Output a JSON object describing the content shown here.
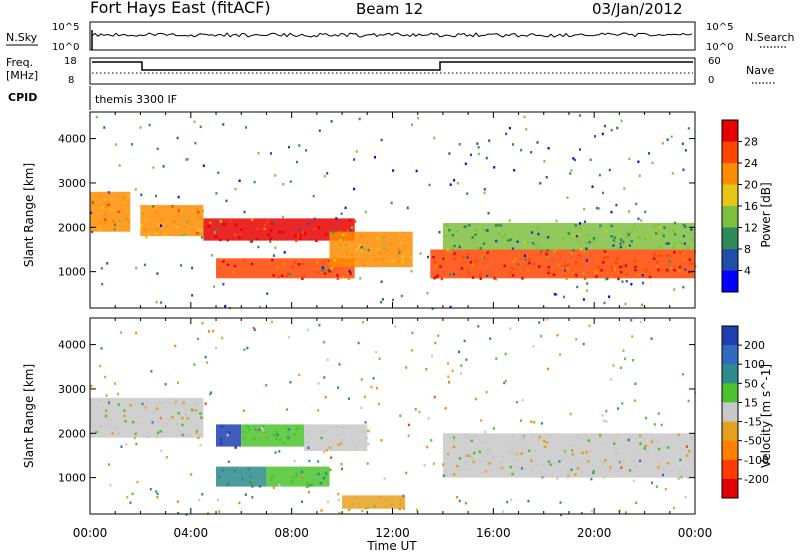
{
  "header": {
    "station": "Fort Hays East (fitACF)",
    "beam": "Beam 12",
    "date": "03/Jan/2012"
  },
  "noise_panel": {
    "left_label": "N.Sky",
    "right_label": "N.Search",
    "left_ticks": [
      "10^5",
      "10^0"
    ],
    "right_ticks": [
      "10^5",
      "10^0"
    ]
  },
  "freq_panel": {
    "left_label_1": "Freq.",
    "left_label_2": "[MHz]",
    "right_label": "Nave",
    "left_ticks": [
      "18",
      "8"
    ],
    "right_ticks": [
      "60",
      "0"
    ]
  },
  "cpid": {
    "label": "CPID",
    "value": "themis 3300 IF"
  },
  "colors": {
    "power_scale": [
      "#0000ff",
      "#1f4fa8",
      "#2e8b57",
      "#7fbf3f",
      "#e6c619",
      "#ff8c00",
      "#ff4500",
      "#e60000"
    ],
    "velocity_scale": [
      "#1f3fb0",
      "#2f6bbf",
      "#2e8b8b",
      "#4cc22c",
      "#c8c8c8",
      "#e6a020",
      "#ff8000",
      "#ff3b00",
      "#e00000"
    ]
  },
  "chart_data": [
    {
      "type": "heatmap",
      "title": "",
      "xlabel": "Time UT",
      "ylabel": "Slant Range [km]",
      "xlim": [
        "00:00",
        "24:00"
      ],
      "ylim": [
        180,
        4600
      ],
      "xticks": [
        "00:00",
        "04:00",
        "08:00",
        "12:00",
        "16:00",
        "20:00",
        "00:00"
      ],
      "yticks": [
        1000,
        2000,
        3000,
        4000
      ],
      "colorbar": {
        "label": "Power [dB]",
        "ticks": [
          4,
          8,
          12,
          16,
          20,
          24,
          28
        ],
        "range": [
          0,
          32
        ]
      },
      "bands": [
        {
          "t0": 0.0,
          "t1": 1.6,
          "r0": 1900,
          "r1": 2800,
          "level": 20
        },
        {
          "t0": 2.0,
          "t1": 4.5,
          "r0": 1800,
          "r1": 2500,
          "level": 20
        },
        {
          "t0": 4.5,
          "t1": 10.5,
          "r0": 1700,
          "r1": 2200,
          "level": 28
        },
        {
          "t0": 5.0,
          "t1": 10.5,
          "r0": 850,
          "r1": 1300,
          "level": 27
        },
        {
          "t0": 9.5,
          "t1": 12.8,
          "r0": 1100,
          "r1": 1900,
          "level": 20
        },
        {
          "t0": 13.5,
          "t1": 24.0,
          "r0": 850,
          "r1": 1500,
          "level": 27
        },
        {
          "t0": 14.0,
          "t1": 24.0,
          "r0": 1500,
          "r1": 2100,
          "level": 12
        }
      ]
    },
    {
      "type": "heatmap",
      "title": "",
      "xlabel": "Time UT",
      "ylabel": "Slant Range [km]",
      "xlim": [
        "00:00",
        "24:00"
      ],
      "ylim": [
        180,
        4600
      ],
      "xticks": [
        "00:00",
        "04:00",
        "08:00",
        "12:00",
        "16:00",
        "20:00",
        "00:00"
      ],
      "yticks": [
        1000,
        2000,
        3000,
        4000
      ],
      "colorbar": {
        "label": "Velocity [m s^-1]",
        "ticks": [
          200,
          100,
          50,
          15,
          -15,
          -50,
          -100,
          -200
        ],
        "range": [
          -250,
          250
        ]
      },
      "bands": [
        {
          "t0": 0.0,
          "t1": 4.5,
          "r0": 1900,
          "r1": 2800,
          "level": 0
        },
        {
          "t0": 5.0,
          "t1": 6.0,
          "r0": 1700,
          "r1": 2200,
          "level": 220
        },
        {
          "t0": 6.0,
          "t1": 8.5,
          "r0": 1700,
          "r1": 2200,
          "level": 60
        },
        {
          "t0": 8.5,
          "t1": 11.0,
          "r0": 1600,
          "r1": 2200,
          "level": 0
        },
        {
          "t0": 5.0,
          "t1": 7.0,
          "r0": 800,
          "r1": 1250,
          "level": 100
        },
        {
          "t0": 7.0,
          "t1": 9.5,
          "r0": 800,
          "r1": 1250,
          "level": 60
        },
        {
          "t0": 10.0,
          "t1": 12.5,
          "r0": 300,
          "r1": 600,
          "level": -60
        },
        {
          "t0": 14.0,
          "t1": 24.0,
          "r0": 1000,
          "r1": 2000,
          "level": 0
        }
      ]
    }
  ]
}
